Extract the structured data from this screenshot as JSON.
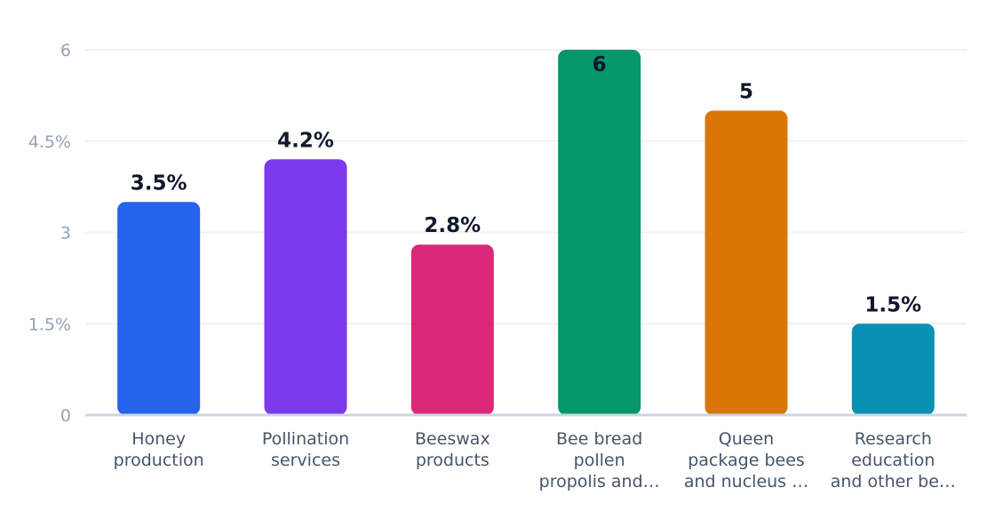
{
  "chart_data": {
    "type": "bar",
    "categories": [
      [
        "Honey",
        "production"
      ],
      [
        "Pollination",
        "services"
      ],
      [
        "Beeswax",
        "products"
      ],
      [
        "Bee bread",
        "pollen",
        "propolis and…"
      ],
      [
        "Queen",
        "package bees",
        "and nucleus …"
      ],
      [
        "Research",
        "education",
        "and other be…"
      ]
    ],
    "values": [
      3.5,
      4.2,
      2.8,
      6,
      5,
      1.5
    ],
    "data_labels": [
      "3.5%",
      "4.2%",
      "2.8%",
      "6",
      "5",
      "1.5%"
    ],
    "colors": [
      "#2563eb",
      "#7c3aed",
      "#db2777",
      "#059669",
      "#d97706",
      "#0891b2"
    ],
    "ylim": [
      0,
      6
    ],
    "yticks": [
      0,
      1.5,
      3,
      4.5,
      6
    ],
    "ytick_labels": [
      "0",
      "1.5%",
      "3",
      "4.5%",
      "6"
    ],
    "grid": true,
    "title": "",
    "xlabel": "",
    "ylabel": ""
  }
}
